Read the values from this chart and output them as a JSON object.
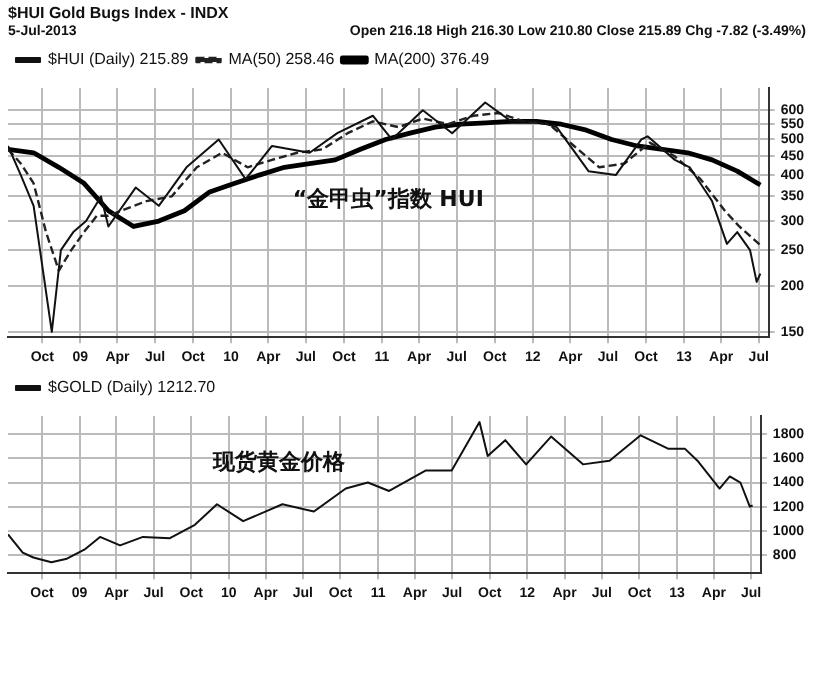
{
  "chart_data": [
    {
      "type": "line",
      "title": "$HUI Gold Bugs Index - INDX",
      "subtitle": "5-Jul-2013",
      "annotations": [
        "Open 216.18 High 216.30 Low 210.80 Close 215.89 Chg -7.82 (-3.49%)",
        "“金甲虫”指数 HUI"
      ],
      "legend": "top left",
      "grid": true,
      "log": "y",
      "marker": "none",
      "xlim": [
        "2008-07-10",
        "2013-07-25"
      ],
      "xticks": [
        {
          "value": "2008-10-01",
          "label": "Oct"
        },
        {
          "value": "2009-01-01",
          "label": "09"
        },
        {
          "value": "2009-04-01",
          "label": "Apr"
        },
        {
          "value": "2009-07-01",
          "label": "Jul"
        },
        {
          "value": "2009-10-01",
          "label": "Oct"
        },
        {
          "value": "2010-01-01",
          "label": "10"
        },
        {
          "value": "2010-04-01",
          "label": "Apr"
        },
        {
          "value": "2010-07-01",
          "label": "Jul"
        },
        {
          "value": "2010-10-01",
          "label": "Oct"
        },
        {
          "value": "2011-01-01",
          "label": "11"
        },
        {
          "value": "2011-04-01",
          "label": "Apr"
        },
        {
          "value": "2011-07-01",
          "label": "Jul"
        },
        {
          "value": "2011-10-01",
          "label": "Oct"
        },
        {
          "value": "2012-01-01",
          "label": "12"
        },
        {
          "value": "2012-04-01",
          "label": "Apr"
        },
        {
          "value": "2012-07-01",
          "label": "Jul"
        },
        {
          "value": "2012-10-01",
          "label": "Oct"
        },
        {
          "value": "2013-01-01",
          "label": "13"
        },
        {
          "value": "2013-04-01",
          "label": "Apr"
        },
        {
          "value": "2013-07-01",
          "label": "Jul"
        }
      ],
      "ylim": [
        145,
        690
      ],
      "yticks": [
        150,
        200,
        250,
        300,
        350,
        400,
        450,
        500,
        550,
        600
      ],
      "series": [
        {
          "name": "$HUI (Daily) 215.89",
          "color": "#111111",
          "line_style": "solid",
          "x": [
            "2008-07-10",
            "2008-08-10",
            "2008-09-10",
            "2008-10-24",
            "2008-11-15",
            "2008-12-15",
            "2009-01-15",
            "2009-02-20",
            "2009-03-10",
            "2009-05-15",
            "2009-07-10",
            "2009-09-15",
            "2009-12-02",
            "2010-02-05",
            "2010-04-10",
            "2010-07-10",
            "2010-09-15",
            "2010-12-10",
            "2011-01-25",
            "2011-04-10",
            "2011-06-20",
            "2011-09-08",
            "2011-11-10",
            "2012-01-10",
            "2012-02-28",
            "2012-05-15",
            "2012-07-20",
            "2012-09-20",
            "2012-10-05",
            "2012-12-10",
            "2013-01-15",
            "2013-03-10",
            "2013-04-15",
            "2013-05-10",
            "2013-06-10",
            "2013-06-26",
            "2013-07-05"
          ],
          "values": [
            480,
            400,
            330,
            150,
            250,
            280,
            300,
            350,
            290,
            370,
            330,
            420,
            500,
            390,
            480,
            460,
            520,
            580,
            500,
            600,
            520,
            630,
            560,
            560,
            540,
            410,
            400,
            500,
            510,
            440,
            420,
            340,
            260,
            280,
            250,
            205,
            216
          ]
        },
        {
          "name": "MA(50) 258.46",
          "color": "#222222",
          "line_style": "dashed",
          "x": [
            "2008-07-10",
            "2008-08-10",
            "2008-09-10",
            "2008-10-10",
            "2008-11-10",
            "2008-12-10",
            "2009-01-10",
            "2009-02-10",
            "2009-03-10",
            "2009-04-10",
            "2009-06-10",
            "2009-08-10",
            "2009-10-10",
            "2009-12-10",
            "2010-02-10",
            "2010-04-10",
            "2010-06-10",
            "2010-08-10",
            "2010-10-10",
            "2010-12-10",
            "2011-02-10",
            "2011-04-10",
            "2011-06-10",
            "2011-08-10",
            "2011-10-10",
            "2011-12-10",
            "2012-02-10",
            "2012-04-10",
            "2012-06-10",
            "2012-08-10",
            "2012-10-10",
            "2012-12-10",
            "2013-02-10",
            "2013-04-10",
            "2013-05-15",
            "2013-07-05"
          ],
          "values": [
            470,
            430,
            380,
            280,
            220,
            250,
            280,
            310,
            310,
            320,
            340,
            350,
            420,
            460,
            420,
            440,
            460,
            470,
            520,
            560,
            540,
            570,
            550,
            580,
            590,
            560,
            550,
            480,
            420,
            430,
            490,
            450,
            390,
            320,
            290,
            258
          ]
        },
        {
          "name": "MA(200) 376.49",
          "color": "#000000",
          "line_style": "solid",
          "x": [
            "2008-07-10",
            "2008-09-10",
            "2008-11-10",
            "2009-01-10",
            "2009-03-10",
            "2009-05-10",
            "2009-07-10",
            "2009-09-10",
            "2009-11-10",
            "2010-01-10",
            "2010-03-10",
            "2010-05-10",
            "2010-07-10",
            "2010-09-10",
            "2010-11-10",
            "2011-01-10",
            "2011-03-10",
            "2011-05-10",
            "2011-07-10",
            "2011-09-10",
            "2011-11-10",
            "2012-01-10",
            "2012-03-10",
            "2012-05-10",
            "2012-07-10",
            "2012-09-10",
            "2012-11-10",
            "2013-01-10",
            "2013-03-10",
            "2013-05-10",
            "2013-07-05"
          ],
          "values": [
            470,
            460,
            420,
            380,
            320,
            290,
            300,
            320,
            360,
            380,
            400,
            420,
            430,
            440,
            470,
            500,
            520,
            540,
            550,
            555,
            560,
            560,
            550,
            530,
            500,
            480,
            470,
            460,
            440,
            410,
            376
          ]
        }
      ]
    },
    {
      "type": "line",
      "annotations": [
        "现货黄金价格"
      ],
      "legend": "top left",
      "grid": true,
      "marker": "none",
      "xlim": [
        "2008-07-10",
        "2013-07-25"
      ],
      "xticks": [
        {
          "value": "2008-10-01",
          "label": "Oct"
        },
        {
          "value": "2009-01-01",
          "label": "09"
        },
        {
          "value": "2009-04-01",
          "label": "Apr"
        },
        {
          "value": "2009-07-01",
          "label": "Jul"
        },
        {
          "value": "2009-10-01",
          "label": "Oct"
        },
        {
          "value": "2010-01-01",
          "label": "10"
        },
        {
          "value": "2010-04-01",
          "label": "Apr"
        },
        {
          "value": "2010-07-01",
          "label": "Jul"
        },
        {
          "value": "2010-10-01",
          "label": "Oct"
        },
        {
          "value": "2011-01-01",
          "label": "11"
        },
        {
          "value": "2011-04-01",
          "label": "Apr"
        },
        {
          "value": "2011-07-01",
          "label": "Jul"
        },
        {
          "value": "2011-10-01",
          "label": "Oct"
        },
        {
          "value": "2012-01-01",
          "label": "12"
        },
        {
          "value": "2012-04-01",
          "label": "Apr"
        },
        {
          "value": "2012-07-01",
          "label": "Jul"
        },
        {
          "value": "2012-10-01",
          "label": "Oct"
        },
        {
          "value": "2013-01-01",
          "label": "13"
        },
        {
          "value": "2013-04-01",
          "label": "Apr"
        },
        {
          "value": "2013-07-01",
          "label": "Jul"
        }
      ],
      "ylim": [
        650,
        1950
      ],
      "yticks": [
        800,
        1000,
        1200,
        1400,
        1600,
        1800
      ],
      "series": [
        {
          "name": "$GOLD (Daily) 1212.70",
          "color": "#111111",
          "line_style": "solid",
          "x": [
            "2008-07-10",
            "2008-08-15",
            "2008-09-10",
            "2008-10-24",
            "2008-12-01",
            "2009-01-15",
            "2009-02-20",
            "2009-04-10",
            "2009-06-05",
            "2009-08-10",
            "2009-10-10",
            "2009-12-03",
            "2010-02-05",
            "2010-05-12",
            "2010-07-28",
            "2010-10-14",
            "2010-12-07",
            "2011-01-28",
            "2011-04-28",
            "2011-06-30",
            "2011-09-06",
            "2011-09-26",
            "2011-11-08",
            "2011-12-29",
            "2012-02-28",
            "2012-05-16",
            "2012-07-20",
            "2012-10-04",
            "2012-12-10",
            "2013-01-20",
            "2013-02-20",
            "2013-04-15",
            "2013-05-10",
            "2013-06-05",
            "2013-06-28",
            "2013-07-05"
          ],
          "values": [
            970,
            820,
            780,
            740,
            770,
            850,
            950,
            880,
            950,
            940,
            1050,
            1220,
            1080,
            1220,
            1160,
            1350,
            1400,
            1330,
            1500,
            1500,
            1900,
            1620,
            1750,
            1550,
            1780,
            1550,
            1580,
            1790,
            1680,
            1680,
            1580,
            1350,
            1450,
            1400,
            1200,
            1210
          ]
        }
      ]
    }
  ]
}
